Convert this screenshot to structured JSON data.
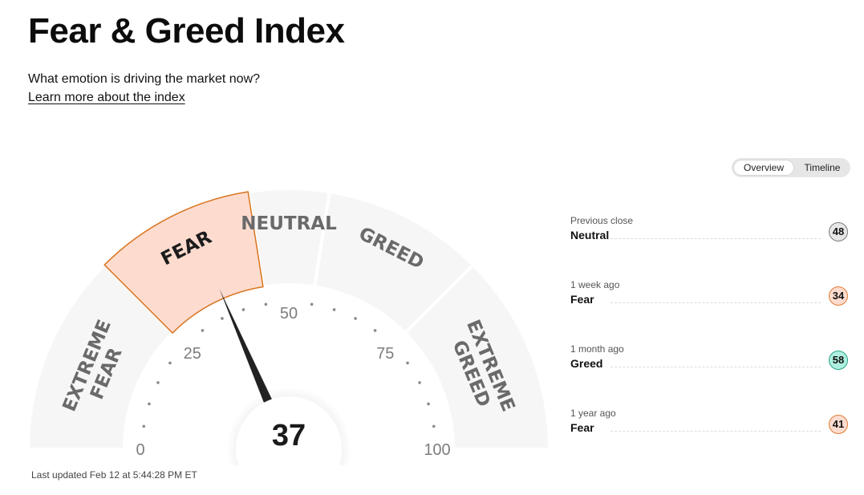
{
  "header": {
    "title": "Fear & Greed Index",
    "subtitle": "What emotion is driving the market now?",
    "learn_more": "Learn more about the index"
  },
  "view_toggle": {
    "overview": "Overview",
    "timeline": "Timeline",
    "active": "Overview"
  },
  "chart_data": {
    "type": "gauge",
    "value": 37,
    "range": [
      0,
      100
    ],
    "active_zone": "FEAR",
    "zones": [
      {
        "lines": [
          "EXTREME",
          "FEAR"
        ],
        "from": 0,
        "to": 25
      },
      {
        "lines": [
          "FEAR"
        ],
        "from": 25,
        "to": 45
      },
      {
        "lines": [
          "NEUTRAL"
        ],
        "from": 45,
        "to": 55
      },
      {
        "lines": [
          "GREED"
        ],
        "from": 55,
        "to": 75
      },
      {
        "lines": [
          "EXTREME",
          "GREED"
        ],
        "from": 75,
        "to": 100
      }
    ],
    "tick_labels": [
      "0",
      "25",
      "50",
      "75",
      "100"
    ],
    "tick_values": [
      0,
      25,
      50,
      75,
      100
    ],
    "zone_fill": "#f6f6f6",
    "active_fill": "#fddccf",
    "active_stroke": "#d9751f"
  },
  "history": [
    {
      "period": "Previous close",
      "label": "Neutral",
      "value": "48",
      "badge_bg": "#e6e6e6",
      "badge_border": "#7a7a7a"
    },
    {
      "period": "1 week ago",
      "label": "Fear",
      "value": "34",
      "badge_bg": "#fddccf",
      "badge_border": "#e07b33"
    },
    {
      "period": "1 month ago",
      "label": "Greed",
      "value": "58",
      "badge_bg": "#aef0e0",
      "badge_border": "#2aa385"
    },
    {
      "period": "1 year ago",
      "label": "Fear",
      "value": "41",
      "badge_bg": "#fddccf",
      "badge_border": "#e07b33"
    }
  ],
  "footer": {
    "updated": "Last updated Feb 12 at 5:44:28 PM ET"
  }
}
